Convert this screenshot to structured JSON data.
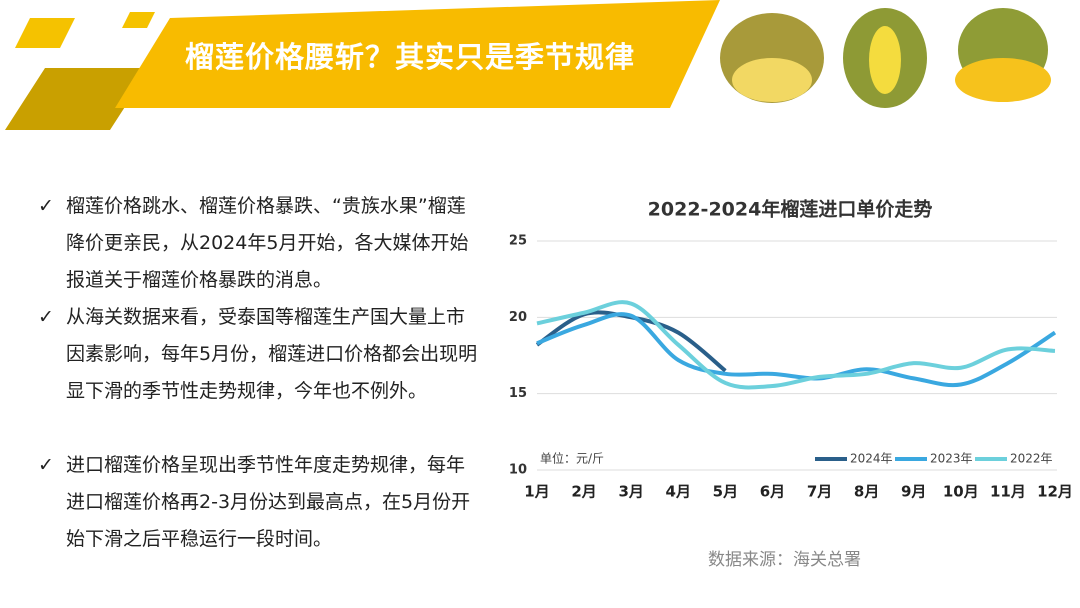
{
  "header": {
    "title": "榴莲价格腰斩？其实只是季节规律"
  },
  "bullets": [
    "榴莲价格跳水、榴莲价格暴跌、“贵族水果”榴莲降价更亲民，从2024年5月开始，各大媒体开始报道关于榴莲价格暴跌的消息。",
    "从海关数据来看，受泰国等榴莲生产国大量上市因素影响，每年5月份，榴莲进口价格都会出现明显下滑的季节性走势规律，今年也不例外。",
    "进口榴莲价格呈现出季节性年度走势规律，每年进口榴莲价格再2-3月份达到最高点，在5月份开始下滑之后平稳运行一段时间。"
  ],
  "source": "数据来源：海关总署",
  "chart_data": {
    "type": "line",
    "title": "2022-2024年榴莲进口单价走势",
    "annotation": "单位：元/斤",
    "categories": [
      "1月",
      "2月",
      "3月",
      "4月",
      "5月",
      "6月",
      "7月",
      "8月",
      "9月",
      "10月",
      "11月",
      "12月"
    ],
    "series": [
      {
        "name": "2024年",
        "color": "#2a5f8a",
        "values": [
          18.2,
          20.2,
          20.0,
          19.0,
          16.5,
          null,
          null,
          null,
          null,
          null,
          null,
          null
        ]
      },
      {
        "name": "2023年",
        "color": "#3aa8e0",
        "values": [
          18.3,
          19.5,
          20.1,
          17.2,
          16.3,
          16.3,
          16.0,
          16.6,
          16.0,
          15.6,
          17.0,
          19.0
        ]
      },
      {
        "name": "2022年",
        "color": "#6cd0dc",
        "values": [
          19.6,
          20.3,
          20.9,
          18.2,
          15.7,
          15.5,
          16.1,
          16.3,
          17.0,
          16.7,
          17.9,
          17.8
        ]
      }
    ],
    "ylim": [
      10,
      25
    ],
    "yticks": [
      10,
      15,
      20,
      25
    ],
    "grid": true,
    "legend": "bottom-right"
  }
}
